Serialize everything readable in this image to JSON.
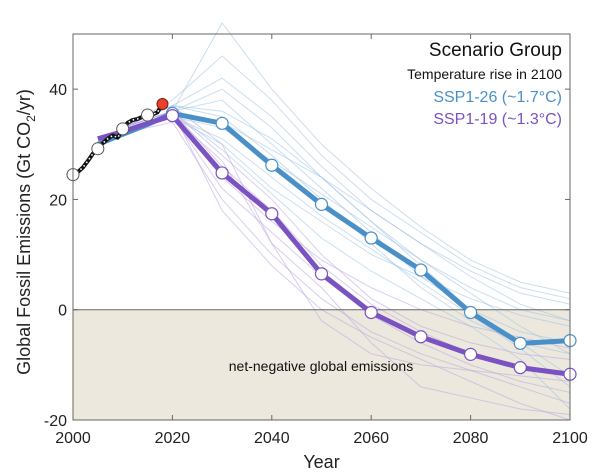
{
  "chart_data": {
    "type": "line",
    "title": "",
    "xlabel": "Year",
    "ylabel": "Global Fossil Emissions (Gt CO2/yr)",
    "ylabel_parts": {
      "before": "Global Fossil Emissions (Gt CO",
      "sub": "2",
      "after": "/yr)"
    },
    "xlim": [
      2000,
      2100
    ],
    "ylim": [
      -20,
      50
    ],
    "xticks": [
      2000,
      2020,
      2040,
      2060,
      2080,
      2100
    ],
    "yticks": [
      -20,
      0,
      20,
      40
    ],
    "grid": false,
    "legend": {
      "placement": "top-right",
      "title": "Scenario Group",
      "subtitle": "Temperature rise in 2100",
      "entries": [
        {
          "label": "SSP1-26 (~1.7°C)",
          "color": "#4a90c8"
        },
        {
          "label": "SSP1-19 (~1.3°C)",
          "color": "#7b52c1"
        }
      ]
    },
    "shaded_region": {
      "label": "net-negative global emissions",
      "from": -20,
      "to": 0,
      "color": "#ece8dd"
    },
    "historical": {
      "name": "Historical",
      "x": [
        2000,
        2001,
        2002,
        2003,
        2004,
        2005,
        2006,
        2007,
        2008,
        2009,
        2010,
        2011,
        2012,
        2013,
        2014,
        2015,
        2016,
        2017,
        2018
      ],
      "y": [
        24.5,
        25.0,
        25.8,
        27.0,
        28.3,
        29.2,
        30.2,
        31.0,
        31.6,
        31.2,
        32.8,
        33.9,
        34.4,
        34.6,
        35.0,
        35.3,
        35.4,
        35.8,
        37.3
      ],
      "markers_x": [
        2000,
        2005,
        2010,
        2015
      ],
      "latest": {
        "x": 2018,
        "y": 37.3,
        "color": "#e8402a"
      }
    },
    "series": [
      {
        "name": "SSP1-26 (~1.7°C)",
        "color": "#4a90c8",
        "x": [
          2005,
          2010,
          2015,
          2020,
          2030,
          2040,
          2050,
          2060,
          2070,
          2080,
          2090,
          2100
        ],
        "y": [
          30.0,
          31.8,
          33.6,
          35.6,
          33.8,
          26.2,
          19.1,
          13.0,
          7.2,
          -0.5,
          -6.1,
          -5.6
        ],
        "markers_x": [
          2020,
          2030,
          2040,
          2050,
          2060,
          2070,
          2080,
          2090,
          2100
        ]
      },
      {
        "name": "SSP1-19 (~1.3°C)",
        "color": "#7b52c1",
        "x": [
          2005,
          2010,
          2015,
          2020,
          2030,
          2040,
          2050,
          2060,
          2070,
          2080,
          2090,
          2100
        ],
        "y": [
          31.0,
          32.3,
          33.8,
          35.2,
          24.8,
          17.4,
          6.5,
          -0.5,
          -4.9,
          -8.1,
          -10.5,
          -11.7
        ],
        "markers_x": [
          2020,
          2030,
          2040,
          2050,
          2060,
          2070,
          2080,
          2090,
          2100
        ]
      }
    ],
    "background_scenarios": {
      "note": "individual model scenario pathways (thin faint lines)",
      "x": [
        2010,
        2020,
        2030,
        2040,
        2050,
        2060,
        2070,
        2080,
        2090,
        2100
      ],
      "paths": [
        {
          "group": "SSP1-26",
          "y": [
            33,
            38,
            46,
            38,
            28,
            20,
            14,
            8,
            4,
            2
          ]
        },
        {
          "group": "SSP1-26",
          "y": [
            33,
            37,
            42,
            35,
            26,
            18,
            12,
            7,
            3,
            1
          ]
        },
        {
          "group": "SSP1-26",
          "y": [
            33,
            36,
            52,
            40,
            30,
            22,
            15,
            9,
            5,
            3
          ]
        },
        {
          "group": "SSP1-26",
          "y": [
            32,
            36,
            38,
            30,
            22,
            14,
            6,
            0,
            -4,
            -6
          ]
        },
        {
          "group": "SSP1-26",
          "y": [
            33,
            37,
            35,
            28,
            20,
            12,
            4,
            -2,
            -6,
            -8
          ]
        },
        {
          "group": "SSP1-26",
          "y": [
            32,
            35,
            33,
            27,
            21,
            15,
            9,
            4,
            0,
            -2
          ]
        },
        {
          "group": "SSP1-26",
          "y": [
            32,
            35,
            30,
            22,
            16,
            10,
            6,
            2,
            -1,
            -3
          ]
        },
        {
          "group": "SSP1-26",
          "y": [
            33,
            36,
            34,
            29,
            24,
            18,
            12,
            6,
            1,
            -2
          ]
        },
        {
          "group": "SSP1-26",
          "y": [
            32,
            36,
            40,
            33,
            24,
            16,
            9,
            3,
            -3,
            -8
          ]
        },
        {
          "group": "SSP1-26",
          "y": [
            33,
            37,
            36,
            31,
            24,
            16,
            8,
            0,
            -6,
            -12
          ]
        },
        {
          "group": "SSP1-26",
          "y": [
            32,
            35,
            31,
            24,
            17,
            11,
            5,
            -1,
            -7,
            -14
          ]
        },
        {
          "group": "SSP1-26",
          "y": [
            33,
            36,
            29,
            21,
            13,
            7,
            2,
            -3,
            -9,
            -18
          ]
        },
        {
          "group": "SSP1-19",
          "y": [
            33,
            36,
            26,
            18,
            8,
            1,
            -4,
            -8,
            -10,
            -12
          ]
        },
        {
          "group": "SSP1-19",
          "y": [
            32,
            35,
            22,
            14,
            6,
            -1,
            -6,
            -10,
            -13,
            -15
          ]
        },
        {
          "group": "SSP1-19",
          "y": [
            33,
            36,
            28,
            20,
            10,
            2,
            -3,
            -6,
            -8,
            -9
          ]
        },
        {
          "group": "SSP1-19",
          "y": [
            32,
            34,
            20,
            10,
            2,
            -4,
            -8,
            -11,
            -14,
            -17
          ]
        },
        {
          "group": "SSP1-19",
          "y": [
            33,
            37,
            30,
            12,
            -2,
            -8,
            -10,
            -11,
            -12,
            -13
          ]
        },
        {
          "group": "SSP1-19",
          "y": [
            32,
            35,
            24,
            16,
            9,
            4,
            0,
            -3,
            -5,
            -7
          ]
        },
        {
          "group": "SSP1-19",
          "y": [
            33,
            36,
            18,
            8,
            0,
            -5,
            -9,
            -13,
            -17,
            -20
          ]
        },
        {
          "group": "SSP1-19",
          "y": [
            32,
            35,
            27,
            12,
            4,
            -6,
            -14,
            -16,
            -18,
            -19
          ]
        }
      ]
    },
    "annotations": [
      "net-negative global emissions"
    ]
  }
}
